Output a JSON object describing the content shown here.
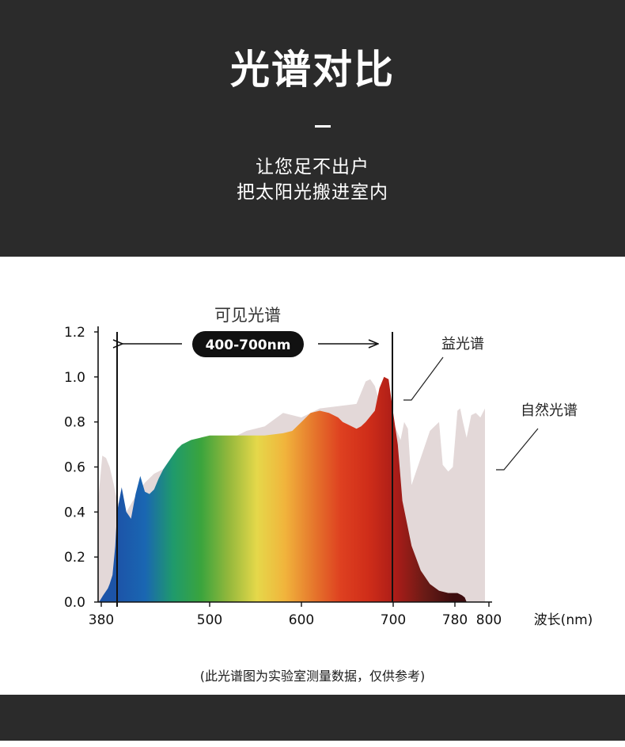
{
  "header": {
    "title": "光谱对比",
    "subtitle_line1": "让您足不出户",
    "subtitle_line2": "把太阳光搬进室内"
  },
  "chart_data": {
    "type": "area",
    "xlim": [
      380,
      800
    ],
    "ylim": [
      0,
      1.2
    ],
    "x_ticks": [
      380,
      500,
      600,
      700,
      780,
      800
    ],
    "x_tick_labels": [
      "380",
      "500",
      "600",
      "700",
      "780",
      "800"
    ],
    "y_ticks": [
      0,
      0.2,
      0.4,
      0.6,
      0.8,
      1.0,
      1.2
    ],
    "y_tick_labels": [
      "0.0",
      "0.2",
      "0.4",
      "0.6",
      "0.8",
      "1.0",
      "1.2"
    ],
    "xlabel": "波长(nm)",
    "visible_band": {
      "label": "可见光谱",
      "range_label": "400-700nm",
      "start": 400,
      "end": 700
    },
    "series": [
      {
        "name": "自然光谱",
        "color": "#d9cbcb",
        "x": [
          380,
          384,
          388,
          392,
          396,
          400,
          405,
          410,
          420,
          430,
          440,
          450,
          460,
          480,
          500,
          520,
          540,
          560,
          580,
          600,
          620,
          640,
          660,
          670,
          675,
          680,
          690,
          700,
          705,
          708,
          712,
          716,
          720,
          730,
          740,
          745,
          750,
          754,
          760,
          765,
          770,
          773,
          776,
          780,
          785,
          790,
          795,
          800
        ],
        "y": [
          0.47,
          0.65,
          0.64,
          0.6,
          0.53,
          0.45,
          0.41,
          0.4,
          0.47,
          0.53,
          0.57,
          0.59,
          0.6,
          0.65,
          0.68,
          0.72,
          0.76,
          0.78,
          0.84,
          0.82,
          0.86,
          0.87,
          0.88,
          0.98,
          0.99,
          0.96,
          0.82,
          0.8,
          0.75,
          0.72,
          0.8,
          0.77,
          0.52,
          0.64,
          0.76,
          0.78,
          0.8,
          0.61,
          0.58,
          0.6,
          0.85,
          0.86,
          0.8,
          0.73,
          0.83,
          0.84,
          0.82,
          0.86
        ]
      },
      {
        "name": "益光谱",
        "gradient": [
          "#1c54a8",
          "#1a66b2",
          "#1f9a6c",
          "#3aa43d",
          "#94b83c",
          "#e5d84a",
          "#f1b43c",
          "#e6792d",
          "#de4020",
          "#cf2d19",
          "#a91c18",
          "#6a1b16",
          "#3d0d0f"
        ],
        "x": [
          380,
          382,
          385,
          390,
          392,
          395,
          398,
          400,
          405,
          410,
          415,
          420,
          425,
          430,
          435,
          440,
          445,
          450,
          455,
          460,
          465,
          470,
          480,
          490,
          500,
          510,
          520,
          540,
          560,
          580,
          590,
          600,
          610,
          620,
          630,
          640,
          645,
          650,
          660,
          665,
          670,
          680,
          685,
          690,
          695,
          700,
          705,
          708,
          710,
          715,
          720,
          730,
          740,
          750,
          760,
          770,
          775,
          778,
          780
        ],
        "y": [
          0,
          0.01,
          0.03,
          0.06,
          0.08,
          0.12,
          0.25,
          0.4,
          0.51,
          0.4,
          0.37,
          0.48,
          0.56,
          0.49,
          0.48,
          0.5,
          0.55,
          0.59,
          0.62,
          0.65,
          0.68,
          0.7,
          0.72,
          0.73,
          0.74,
          0.74,
          0.74,
          0.74,
          0.74,
          0.75,
          0.76,
          0.8,
          0.84,
          0.85,
          0.84,
          0.82,
          0.8,
          0.79,
          0.77,
          0.78,
          0.8,
          0.85,
          0.95,
          1.0,
          0.99,
          0.84,
          0.7,
          0.55,
          0.45,
          0.35,
          0.25,
          0.14,
          0.08,
          0.05,
          0.04,
          0.04,
          0.03,
          0.02,
          0
        ]
      }
    ],
    "annotations": [
      "益光谱",
      "自然光谱"
    ]
  },
  "footer": {
    "note": "(此光谱图为实验室测量数据，仅供参考)"
  }
}
